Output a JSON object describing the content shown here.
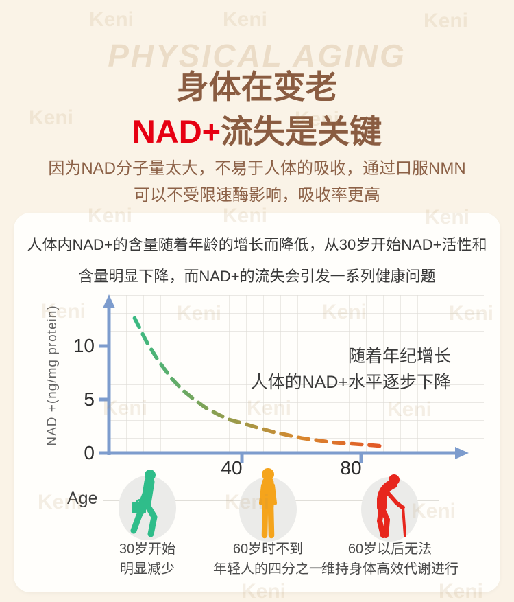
{
  "page": {
    "background_color": "#faf3e7",
    "watermark_text": "Keni",
    "watermark_title": "PHYSICAL AGING"
  },
  "header": {
    "title_line1": "身体在变老",
    "title_highlight": "NAD+",
    "title_line2_rest": "流失是关键",
    "title_color": "#8a5c41",
    "highlight_color": "#e60012",
    "subtitle_line1": "因为NAD分子量太大，不易于人体的吸收，通过口服NMN",
    "subtitle_line2": "可以不受限速酶影响，吸收率更高"
  },
  "card": {
    "intro_line1": "人体内NAD+的含量随着年龄的增长而降低，从30岁开始NAD+活性和",
    "intro_line2": "含量明显下降，而NAD+的流失会引发一系列健康问题"
  },
  "chart_data": {
    "type": "line",
    "title": "",
    "ylabel": "NAD +(ng/mg protein)",
    "xlabel": "Age",
    "x_ticks": [
      "40",
      "80"
    ],
    "y_ticks": [
      "0",
      "5",
      "10"
    ],
    "xlim": [
      0,
      115
    ],
    "ylim": [
      0,
      14
    ],
    "grid": true,
    "legend": "none",
    "line_style": "dashed",
    "axis_color": "#7d9ccd",
    "gradient_colors": [
      "#2fbd8a",
      "#84a154",
      "#d8882f",
      "#e35426"
    ],
    "annotation_line1": "随着年纪增长",
    "annotation_line2": "人体的NAD+水平逐步下降",
    "series": [
      {
        "name": "NAD+ level by age",
        "x": [
          4,
          8,
          12,
          16,
          20,
          24,
          28,
          32,
          36,
          40,
          45,
          50,
          55,
          60,
          65,
          70,
          75,
          80,
          85,
          88
        ],
        "y": [
          12.6,
          10.4,
          8.6,
          7.1,
          5.9,
          5.0,
          4.2,
          3.6,
          3.1,
          2.8,
          2.4,
          2.0,
          1.7,
          1.4,
          1.2,
          1.0,
          0.9,
          0.8,
          0.7,
          0.6
        ]
      }
    ]
  },
  "age_row": {
    "label": "Age",
    "figures": [
      {
        "id": "age-30",
        "color": "#2fbd8a",
        "caption_line1": "30岁开始",
        "caption_line2": "明显减少"
      },
      {
        "id": "age-60",
        "color": "#f5a41c",
        "caption_line1": "60岁时不到",
        "caption_line2": "年轻人的四分之一"
      },
      {
        "id": "age-80",
        "color": "#e7261d",
        "caption_line1": "60岁以后无法",
        "caption_line2": "维持身体高效代谢进行"
      }
    ]
  }
}
